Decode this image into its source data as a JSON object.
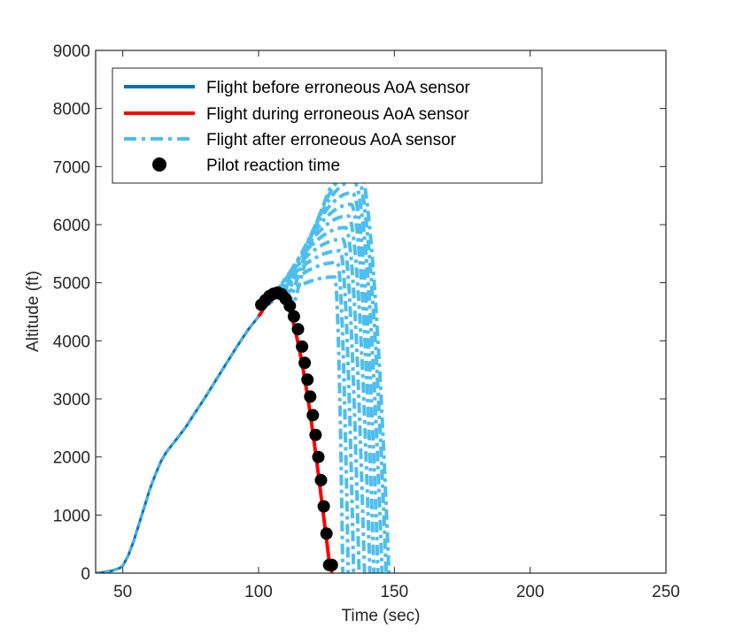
{
  "chart_data": {
    "type": "line",
    "title": "",
    "xlabel": "Time (sec)",
    "ylabel": "Altitude (ft)",
    "xlim": [
      40,
      250
    ],
    "ylim": [
      0,
      9000
    ],
    "xticks": [
      50,
      100,
      150,
      200,
      250
    ],
    "yticks": [
      0,
      1000,
      2000,
      3000,
      4000,
      5000,
      6000,
      7000,
      8000,
      9000
    ],
    "grid": false,
    "legend_position": "top-left",
    "colors": {
      "before": "#0072BD",
      "during": "#FF0000",
      "after": "#4DBEEE",
      "reaction": "#000000",
      "axis": "#262626"
    },
    "series": [
      {
        "name": "Flight before erroneous AoA sensor",
        "style": "solid",
        "x": [
          40,
          43,
          46,
          49,
          50,
          52,
          54,
          56,
          58,
          60,
          62,
          64,
          66,
          68,
          70,
          73,
          76,
          80,
          84,
          88,
          92,
          96,
          100,
          101
        ],
        "y": [
          0,
          15,
          40,
          90,
          130,
          300,
          550,
          850,
          1150,
          1450,
          1700,
          1920,
          2080,
          2200,
          2320,
          2500,
          2720,
          3000,
          3300,
          3600,
          3900,
          4180,
          4420,
          4490
        ]
      },
      {
        "name": "Flight during erroneous AoA sensor",
        "style": "solid",
        "x": [
          100,
          101,
          102,
          103,
          104,
          105,
          106,
          107,
          108,
          109,
          110,
          111,
          112,
          113,
          114,
          115,
          116,
          117,
          118,
          119,
          120,
          121,
          122,
          123,
          124,
          125,
          126,
          127,
          127.5
        ],
        "y": [
          4420,
          4490,
          4580,
          4660,
          4730,
          4780,
          4810,
          4820,
          4810,
          4770,
          4690,
          4580,
          4440,
          4280,
          4080,
          3860,
          3620,
          3350,
          3060,
          2750,
          2420,
          2070,
          1710,
          1340,
          960,
          580,
          210,
          0,
          0
        ]
      },
      {
        "name": "Flight after erroneous AoA sensor",
        "style": "dashed",
        "peaks": [
          5100,
          5350,
          5550,
          5750,
          5950,
          6150,
          6350,
          6550,
          6750,
          6950,
          7150
        ],
        "peak_times": [
          128,
          129,
          130,
          131,
          132,
          133,
          134,
          134.5,
          135,
          135.5,
          136
        ],
        "start_times": [
          102,
          103,
          104,
          105,
          106,
          107,
          108,
          109,
          110,
          111,
          112
        ],
        "end_times": [
          131,
          133,
          135,
          137,
          139,
          141,
          142.5,
          144,
          145.5,
          147,
          148
        ]
      },
      {
        "name": "Pilot reaction time",
        "style": "markers",
        "x": [
          101,
          102.5,
          104,
          105.5,
          107,
          108.5,
          110,
          111.5,
          113,
          114.5,
          116,
          117,
          118,
          119,
          120,
          121,
          122,
          123,
          124,
          125,
          126,
          127
        ],
        "y": [
          4620,
          4700,
          4770,
          4810,
          4830,
          4800,
          4720,
          4600,
          4420,
          4200,
          3900,
          3620,
          3330,
          3040,
          2720,
          2380,
          2000,
          1600,
          1150,
          680,
          140,
          140
        ]
      }
    ]
  }
}
